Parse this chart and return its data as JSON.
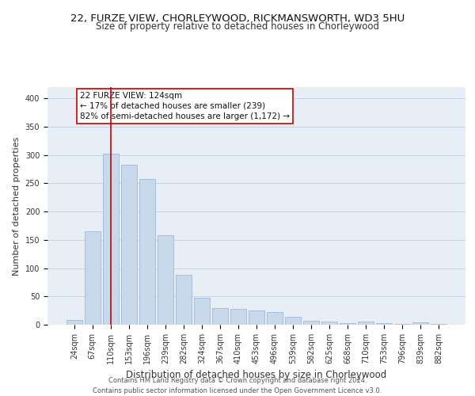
{
  "title_line1": "22, FURZE VIEW, CHORLEYWOOD, RICKMANSWORTH, WD3 5HU",
  "title_line2": "Size of property relative to detached houses in Chorleywood",
  "xlabel": "Distribution of detached houses by size in Chorleywood",
  "ylabel": "Number of detached properties",
  "categories": [
    "24sqm",
    "67sqm",
    "110sqm",
    "153sqm",
    "196sqm",
    "239sqm",
    "282sqm",
    "324sqm",
    "367sqm",
    "410sqm",
    "453sqm",
    "496sqm",
    "539sqm",
    "582sqm",
    "625sqm",
    "668sqm",
    "710sqm",
    "753sqm",
    "796sqm",
    "839sqm",
    "882sqm"
  ],
  "values": [
    8,
    165,
    303,
    283,
    258,
    158,
    88,
    48,
    30,
    28,
    25,
    22,
    14,
    7,
    5,
    3,
    5,
    3,
    2,
    4,
    2
  ],
  "bar_color": "#c9d9ec",
  "bar_edge_color": "#a0b8d8",
  "vline_x_index": 2,
  "vline_color": "#cc0000",
  "annotation_line1": "22 FURZE VIEW: 124sqm",
  "annotation_line2": "← 17% of detached houses are smaller (239)",
  "annotation_line3": "82% of semi-detached houses are larger (1,172) →",
  "annotation_box_color": "#ffffff",
  "annotation_box_edge": "#cc0000",
  "ylim": [
    0,
    420
  ],
  "yticks": [
    0,
    50,
    100,
    150,
    200,
    250,
    300,
    350,
    400
  ],
  "grid_color": "#c8d4e8",
  "bg_color": "#e8eef5",
  "footer": "Contains HM Land Registry data © Crown copyright and database right 2024.\nContains public sector information licensed under the Open Government Licence v3.0.",
  "title_fontsize": 9.5,
  "subtitle_fontsize": 8.5,
  "xlabel_fontsize": 8.5,
  "ylabel_fontsize": 8,
  "tick_fontsize": 7,
  "annotation_fontsize": 7.5,
  "footer_fontsize": 6
}
